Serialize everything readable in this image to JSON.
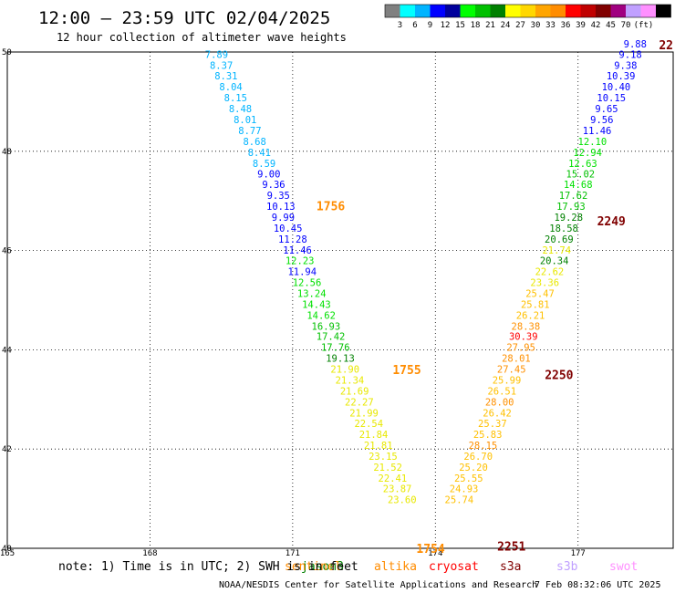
{
  "header": {
    "title": "12:00 – 23:59 UTC 02/04/2025",
    "subtitle": "12 hour collection of altimeter wave heights"
  },
  "color_scale": {
    "colors": [
      "#808080",
      "#00ffff",
      "#00b4ff",
      "#0000ff",
      "#00009c",
      "#00ff00",
      "#00c000",
      "#008000",
      "#ffff00",
      "#ffd700",
      "#ffa500",
      "#ff8c00",
      "#ff0000",
      "#c00000",
      "#800000",
      "#a00080",
      "#c0a0ff",
      "#ff90ff",
      "#000000"
    ],
    "labels": [
      "3",
      "6",
      "9",
      "12",
      "15",
      "18",
      "21",
      "24",
      "27",
      "30",
      "33",
      "36",
      "39",
      "42",
      "45",
      "70",
      "(ft)"
    ]
  },
  "chart_data": {
    "type": "scatter",
    "title": "12:00 – 23:59 UTC 02/04/2025",
    "subtitle": "12 hour collection of altimeter wave heights",
    "xlim": [
      165,
      179
    ],
    "ylim": [
      40,
      50
    ],
    "x_ticks": [
      "165",
      "168",
      "171",
      "174",
      "177"
    ],
    "y_ticks": [
      "40",
      "42",
      "44",
      "46",
      "48",
      "50"
    ],
    "grid": true,
    "points": [
      {
        "x": 169.4,
        "y": 49.95,
        "v": "7.89"
      },
      {
        "x": 169.5,
        "y": 49.73,
        "v": "8.37"
      },
      {
        "x": 169.6,
        "y": 49.52,
        "v": "8.31"
      },
      {
        "x": 169.7,
        "y": 49.3,
        "v": "8.04"
      },
      {
        "x": 169.8,
        "y": 49.08,
        "v": "8.15"
      },
      {
        "x": 169.9,
        "y": 48.86,
        "v": "8.48"
      },
      {
        "x": 170.0,
        "y": 48.64,
        "v": "8.01"
      },
      {
        "x": 170.1,
        "y": 48.42,
        "v": "8.77"
      },
      {
        "x": 170.2,
        "y": 48.2,
        "v": "8.68"
      },
      {
        "x": 170.3,
        "y": 47.98,
        "v": "8.41"
      },
      {
        "x": 170.4,
        "y": 47.76,
        "v": "8.59"
      },
      {
        "x": 170.5,
        "y": 47.55,
        "v": "9.00"
      },
      {
        "x": 170.6,
        "y": 47.33,
        "v": "9.36"
      },
      {
        "x": 170.7,
        "y": 47.11,
        "v": "9.35"
      },
      {
        "x": 170.75,
        "y": 46.89,
        "v": "10.13"
      },
      {
        "x": 170.8,
        "y": 46.67,
        "v": "9.99"
      },
      {
        "x": 170.9,
        "y": 46.45,
        "v": "10.45"
      },
      {
        "x": 171.0,
        "y": 46.23,
        "v": "11.28"
      },
      {
        "x": 171.1,
        "y": 46.01,
        "v": "11.46"
      },
      {
        "x": 171.15,
        "y": 45.8,
        "v": "12.23"
      },
      {
        "x": 171.2,
        "y": 45.58,
        "v": "11.94"
      },
      {
        "x": 171.3,
        "y": 45.36,
        "v": "12.56"
      },
      {
        "x": 171.4,
        "y": 45.14,
        "v": "13.24"
      },
      {
        "x": 171.5,
        "y": 44.92,
        "v": "14.43"
      },
      {
        "x": 171.6,
        "y": 44.7,
        "v": "14.62"
      },
      {
        "x": 171.7,
        "y": 44.48,
        "v": "16.93"
      },
      {
        "x": 171.8,
        "y": 44.27,
        "v": "17.42"
      },
      {
        "x": 171.9,
        "y": 44.05,
        "v": "17.76"
      },
      {
        "x": 172.0,
        "y": 43.83,
        "v": "19.13"
      },
      {
        "x": 172.1,
        "y": 43.61,
        "v": "21.90"
      },
      {
        "x": 172.2,
        "y": 43.39,
        "v": "21.34"
      },
      {
        "x": 172.3,
        "y": 43.17,
        "v": "21.69"
      },
      {
        "x": 172.4,
        "y": 42.95,
        "v": "22.27"
      },
      {
        "x": 172.5,
        "y": 42.73,
        "v": "21.99"
      },
      {
        "x": 172.6,
        "y": 42.52,
        "v": "22.54"
      },
      {
        "x": 172.7,
        "y": 42.3,
        "v": "21.84"
      },
      {
        "x": 172.8,
        "y": 42.08,
        "v": "21.81"
      },
      {
        "x": 172.9,
        "y": 41.86,
        "v": "23.15"
      },
      {
        "x": 173.0,
        "y": 41.64,
        "v": "21.52"
      },
      {
        "x": 173.1,
        "y": 41.42,
        "v": "22.41"
      },
      {
        "x": 173.2,
        "y": 41.2,
        "v": "23.87"
      },
      {
        "x": 173.3,
        "y": 40.98,
        "v": "23.60"
      },
      {
        "x": 174.5,
        "y": 40.98,
        "v": "25.74"
      },
      {
        "x": 174.6,
        "y": 41.2,
        "v": "24.93"
      },
      {
        "x": 174.7,
        "y": 41.42,
        "v": "25.55"
      },
      {
        "x": 174.8,
        "y": 41.64,
        "v": "25.20"
      },
      {
        "x": 174.9,
        "y": 41.86,
        "v": "26.70"
      },
      {
        "x": 175.0,
        "y": 42.08,
        "v": "28.15"
      },
      {
        "x": 175.1,
        "y": 42.3,
        "v": "25.83"
      },
      {
        "x": 175.2,
        "y": 42.52,
        "v": "25.37"
      },
      {
        "x": 175.3,
        "y": 42.73,
        "v": "26.42"
      },
      {
        "x": 175.35,
        "y": 42.95,
        "v": "28.00"
      },
      {
        "x": 175.4,
        "y": 43.17,
        "v": "26.51"
      },
      {
        "x": 175.5,
        "y": 43.39,
        "v": "25.99"
      },
      {
        "x": 175.6,
        "y": 43.61,
        "v": "27.45"
      },
      {
        "x": 175.7,
        "y": 43.83,
        "v": "28.01"
      },
      {
        "x": 175.8,
        "y": 44.05,
        "v": "27.95"
      },
      {
        "x": 175.85,
        "y": 44.27,
        "v": "30.39"
      },
      {
        "x": 175.9,
        "y": 44.48,
        "v": "28.38"
      },
      {
        "x": 176.0,
        "y": 44.7,
        "v": "26.21"
      },
      {
        "x": 176.1,
        "y": 44.92,
        "v": "25.81"
      },
      {
        "x": 176.2,
        "y": 45.14,
        "v": "25.47"
      },
      {
        "x": 176.3,
        "y": 45.36,
        "v": "23.36"
      },
      {
        "x": 176.4,
        "y": 45.58,
        "v": "22.62"
      },
      {
        "x": 176.5,
        "y": 45.8,
        "v": "20.34"
      },
      {
        "x": 176.55,
        "y": 46.01,
        "v": "21.74"
      },
      {
        "x": 176.6,
        "y": 46.23,
        "v": "20.69"
      },
      {
        "x": 176.7,
        "y": 46.45,
        "v": "18.58"
      },
      {
        "x": 176.8,
        "y": 46.67,
        "v": "19.28"
      },
      {
        "x": 176.85,
        "y": 46.89,
        "v": "17.93"
      },
      {
        "x": 176.9,
        "y": 47.11,
        "v": "17.62"
      },
      {
        "x": 177.0,
        "y": 47.33,
        "v": "14.68"
      },
      {
        "x": 177.05,
        "y": 47.55,
        "v": "15.02"
      },
      {
        "x": 177.1,
        "y": 47.76,
        "v": "12.63"
      },
      {
        "x": 177.2,
        "y": 47.98,
        "v": "12.94"
      },
      {
        "x": 177.3,
        "y": 48.2,
        "v": "12.10"
      },
      {
        "x": 177.4,
        "y": 48.42,
        "v": "11.46"
      },
      {
        "x": 177.5,
        "y": 48.64,
        "v": "9.56"
      },
      {
        "x": 177.6,
        "y": 48.86,
        "v": "9.65"
      },
      {
        "x": 177.7,
        "y": 49.08,
        "v": "10.15"
      },
      {
        "x": 177.8,
        "y": 49.3,
        "v": "10.40"
      },
      {
        "x": 177.9,
        "y": 49.52,
        "v": "10.39"
      },
      {
        "x": 178.0,
        "y": 49.73,
        "v": "9.38"
      },
      {
        "x": 178.1,
        "y": 49.95,
        "v": "9.18"
      },
      {
        "x": 178.2,
        "y": 50.17,
        "v": "9.88"
      }
    ],
    "time_labels": [
      {
        "text": "1756",
        "x": 171.5,
        "y": 46.9,
        "color": "#ff8c00"
      },
      {
        "text": "1755",
        "x": 173.1,
        "y": 43.6,
        "color": "#ff8c00"
      },
      {
        "text": "1754",
        "x": 173.6,
        "y": 40.0,
        "color": "#ff8c00"
      },
      {
        "text": "2249",
        "x": 177.4,
        "y": 46.6,
        "color": "#800000"
      },
      {
        "text": "2250",
        "x": 176.3,
        "y": 43.5,
        "color": "#800000"
      },
      {
        "text": "2251",
        "x": 175.3,
        "y": 40.05,
        "color": "#800000"
      },
      {
        "text": "22",
        "x": 178.7,
        "y": 50.15,
        "color": "#800000"
      }
    ]
  },
  "satellites": [
    {
      "name": "jason3",
      "color": "#008000"
    },
    {
      "name": "sentinel",
      "color": "#ff8c00"
    },
    {
      "name": "altika",
      "color": "#ff8c00"
    },
    {
      "name": "cryosat",
      "color": "#ff0000"
    },
    {
      "name": "s3a",
      "color": "#800000"
    },
    {
      "name": "s3b",
      "color": "#c0a0ff"
    },
    {
      "name": "swot",
      "color": "#ff90ff"
    }
  ],
  "footer": {
    "note": "note: 1) Time is in UTC; 2) SWH is in feet",
    "credit": "NOAA/NESDIS Center for Satellite Applications and Research",
    "timestamp": "7 Feb 08:32:06 UTC 2025"
  }
}
